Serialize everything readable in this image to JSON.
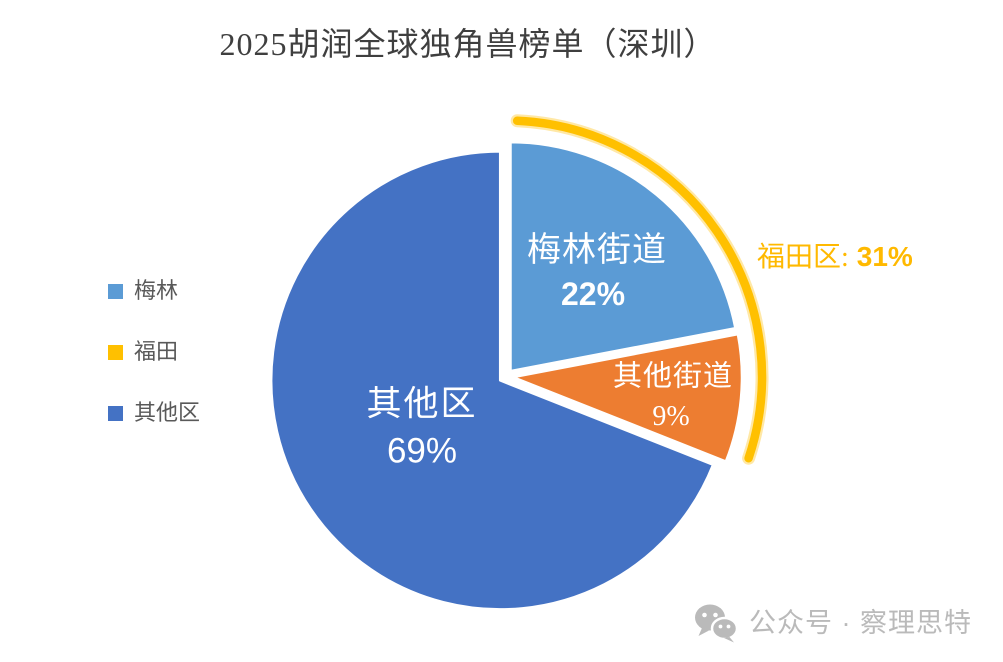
{
  "title": {
    "text": "2025胡润全球独角兽榜单（深圳）",
    "color": "#3F3F3F"
  },
  "chart_data": {
    "type": "pie",
    "title": "2025胡润全球独角兽榜单（深圳）",
    "unit": "percent",
    "direction": "clockwise",
    "start_angle_deg": 0,
    "slices": [
      {
        "label": "梅林街道",
        "value": 22,
        "value_text": "22%",
        "color": "#5B9BD5"
      },
      {
        "label": "其他街道",
        "value": 9,
        "value_text": "9%",
        "color": "#ED7D31"
      },
      {
        "label": "其他区",
        "value": 69,
        "value_text": "69%",
        "color": "#4472C4"
      }
    ],
    "legend": {
      "position": "left",
      "items": [
        {
          "label": "梅林",
          "color": "#5B9BD5"
        },
        {
          "label": "福田",
          "color": "#FFC000"
        },
        {
          "label": "其他区",
          "color": "#4472C4"
        }
      ]
    },
    "annotation": {
      "label": "福田区:",
      "value": 31,
      "value_text": "31%",
      "text_color": "#FFB900",
      "arc_color": "#FFC000",
      "arc_covers_slices": [
        "梅林街道",
        "其他街道"
      ]
    }
  },
  "watermark": {
    "icon": "wechat-icon",
    "text": "公众号 · 察理思特",
    "color": "#BABABA"
  }
}
